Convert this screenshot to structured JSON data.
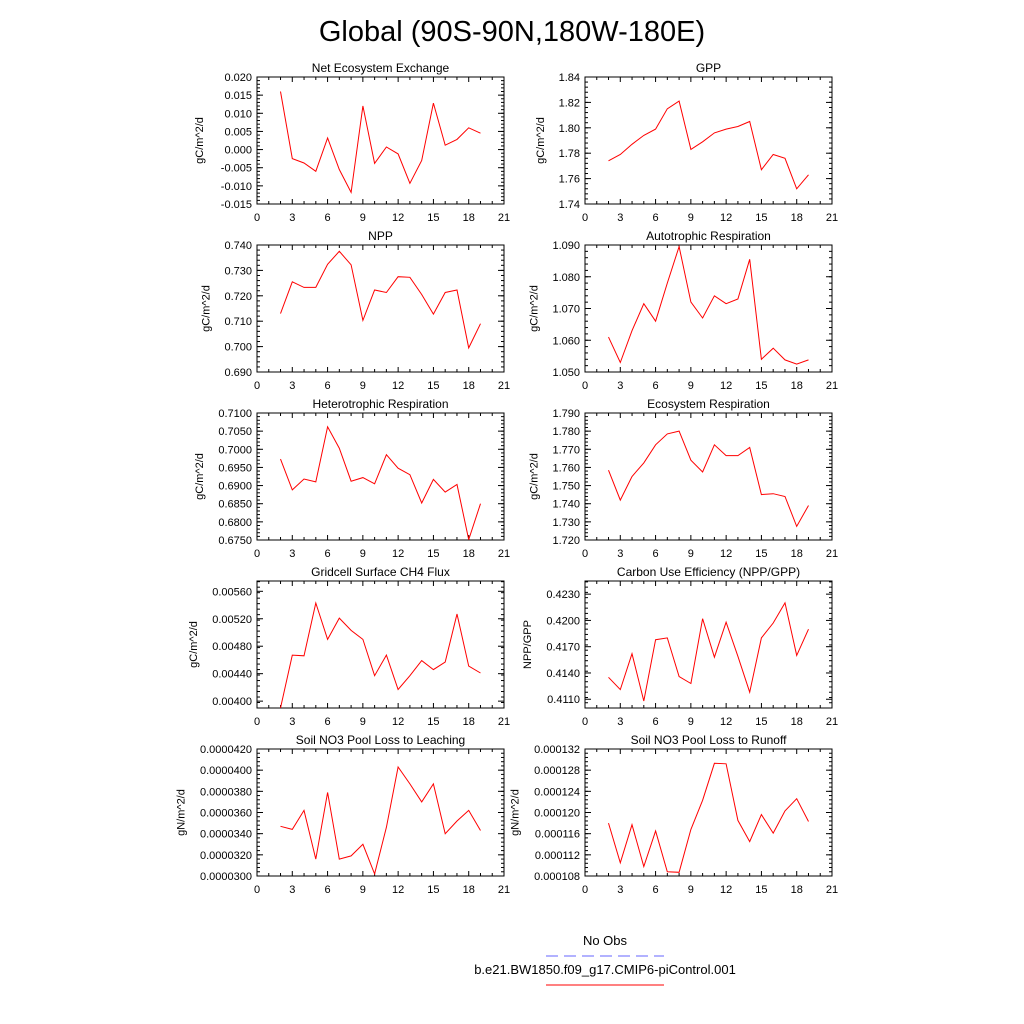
{
  "title": "Global (90S-90N,180W-180E)",
  "colors": {
    "series": "#ff0000",
    "no_obs": "#6666ff",
    "axis": "#000000"
  },
  "legend": {
    "no_obs_label": "No Obs",
    "model_label": "b.e21.BW1850.f09_g17.CMIP6-piControl.001"
  },
  "chart_data": [
    {
      "type": "line",
      "title": "Net Ecosystem Exchange",
      "ylabel": "gC/m^2/d",
      "xlabel": "",
      "xlim": [
        0,
        21
      ],
      "xticks": [
        0,
        3,
        6,
        9,
        12,
        15,
        18,
        21
      ],
      "ylim": [
        -0.015,
        0.02
      ],
      "yticks": [
        -0.015,
        -0.01,
        -0.005,
        0.0,
        0.005,
        0.01,
        0.015,
        0.02
      ],
      "ytick_labels": [
        "-0.015",
        "-0.010",
        "-0.005",
        "0.000",
        "0.005",
        "0.010",
        "0.015",
        "0.020"
      ],
      "x": [
        2,
        3,
        4,
        5,
        6,
        7,
        8,
        9,
        10,
        11,
        12,
        13,
        14,
        15,
        16,
        17,
        18,
        19
      ],
      "values": [
        0.016,
        -0.0025,
        -0.0037,
        -0.006,
        0.0032,
        -0.0055,
        -0.0118,
        0.012,
        -0.0038,
        0.0007,
        -0.0012,
        -0.0093,
        -0.003,
        0.0128,
        0.0012,
        0.0028,
        0.006,
        0.0045
      ]
    },
    {
      "type": "line",
      "title": "GPP",
      "ylabel": "gC/m^2/d",
      "xlabel": "",
      "xlim": [
        0,
        21
      ],
      "xticks": [
        0,
        3,
        6,
        9,
        12,
        15,
        18,
        21
      ],
      "ylim": [
        1.74,
        1.84
      ],
      "yticks": [
        1.74,
        1.76,
        1.78,
        1.8,
        1.82,
        1.84
      ],
      "ytick_labels": [
        "1.74",
        "1.76",
        "1.78",
        "1.80",
        "1.82",
        "1.84"
      ],
      "x": [
        2,
        3,
        4,
        5,
        6,
        7,
        8,
        9,
        10,
        11,
        12,
        13,
        14,
        15,
        16,
        17,
        18,
        19
      ],
      "values": [
        1.774,
        1.779,
        1.787,
        1.794,
        1.799,
        1.815,
        1.821,
        1.783,
        1.789,
        1.796,
        1.799,
        1.801,
        1.805,
        1.767,
        1.779,
        1.776,
        1.752,
        1.763
      ]
    },
    {
      "type": "line",
      "title": "NPP",
      "ylabel": "gC/m^2/d",
      "xlabel": "",
      "xlim": [
        0,
        21
      ],
      "xticks": [
        0,
        3,
        6,
        9,
        12,
        15,
        18,
        21
      ],
      "ylim": [
        0.69,
        0.74
      ],
      "yticks": [
        0.69,
        0.7,
        0.71,
        0.72,
        0.73,
        0.74
      ],
      "ytick_labels": [
        "0.690",
        "0.700",
        "0.710",
        "0.720",
        "0.730",
        "0.740"
      ],
      "x": [
        2,
        3,
        4,
        5,
        6,
        7,
        8,
        9,
        10,
        11,
        12,
        13,
        14,
        15,
        16,
        17,
        18,
        19
      ],
      "values": [
        0.713,
        0.7255,
        0.7233,
        0.7233,
        0.7324,
        0.7375,
        0.7322,
        0.7103,
        0.7223,
        0.7213,
        0.7275,
        0.7273,
        0.7205,
        0.7128,
        0.7213,
        0.7223,
        0.6995,
        0.709
      ]
    },
    {
      "type": "line",
      "title": "Autotrophic Respiration",
      "ylabel": "gC/m^2/d",
      "xlabel": "",
      "xlim": [
        0,
        21
      ],
      "xticks": [
        0,
        3,
        6,
        9,
        12,
        15,
        18,
        21
      ],
      "ylim": [
        1.05,
        1.09
      ],
      "yticks": [
        1.05,
        1.06,
        1.07,
        1.08,
        1.09
      ],
      "ytick_labels": [
        "1.050",
        "1.060",
        "1.070",
        "1.080",
        "1.090"
      ],
      "x": [
        2,
        3,
        4,
        5,
        6,
        7,
        8,
        9,
        10,
        11,
        12,
        13,
        14,
        15,
        16,
        17,
        18,
        19
      ],
      "values": [
        1.061,
        1.053,
        1.063,
        1.0715,
        1.066,
        1.078,
        1.0895,
        1.072,
        1.067,
        1.074,
        1.0715,
        1.073,
        1.0855,
        1.054,
        1.0575,
        1.0538,
        1.0525,
        1.0538
      ]
    },
    {
      "type": "line",
      "title": "Heterotrophic Respiration",
      "ylabel": "gC/m^2/d",
      "xlabel": "",
      "xlim": [
        0,
        21
      ],
      "xticks": [
        0,
        3,
        6,
        9,
        12,
        15,
        18,
        21
      ],
      "ylim": [
        0.675,
        0.71
      ],
      "yticks": [
        0.675,
        0.68,
        0.685,
        0.69,
        0.695,
        0.7,
        0.705,
        0.71
      ],
      "ytick_labels": [
        "0.6750",
        "0.6800",
        "0.6850",
        "0.6900",
        "0.6950",
        "0.7000",
        "0.7050",
        "0.7100"
      ],
      "x": [
        2,
        3,
        4,
        5,
        6,
        7,
        8,
        9,
        10,
        11,
        12,
        13,
        14,
        15,
        16,
        17,
        18,
        19
      ],
      "values": [
        0.6973,
        0.6888,
        0.6918,
        0.691,
        0.7062,
        0.7003,
        0.6912,
        0.6922,
        0.6905,
        0.6985,
        0.6948,
        0.693,
        0.6852,
        0.6917,
        0.6882,
        0.6903,
        0.6751,
        0.685
      ]
    },
    {
      "type": "line",
      "title": "Ecosystem Respiration",
      "ylabel": "gC/m^2/d",
      "xlabel": "",
      "xlim": [
        0,
        21
      ],
      "xticks": [
        0,
        3,
        6,
        9,
        12,
        15,
        18,
        21
      ],
      "ylim": [
        1.72,
        1.79
      ],
      "yticks": [
        1.72,
        1.73,
        1.74,
        1.75,
        1.76,
        1.77,
        1.78,
        1.79
      ],
      "ytick_labels": [
        "1.720",
        "1.730",
        "1.740",
        "1.750",
        "1.760",
        "1.770",
        "1.780",
        "1.790"
      ],
      "x": [
        2,
        3,
        4,
        5,
        6,
        7,
        8,
        9,
        10,
        11,
        12,
        13,
        14,
        15,
        16,
        17,
        18,
        19
      ],
      "values": [
        1.7585,
        1.742,
        1.755,
        1.7625,
        1.7725,
        1.7785,
        1.78,
        1.764,
        1.7575,
        1.7725,
        1.7665,
        1.7665,
        1.771,
        1.745,
        1.7455,
        1.744,
        1.7275,
        1.739
      ]
    },
    {
      "type": "line",
      "title": "Gridcell Surface CH4 Flux",
      "ylabel": "gC/m^2/d",
      "xlabel": "",
      "xlim": [
        0,
        21
      ],
      "xticks": [
        0,
        3,
        6,
        9,
        12,
        15,
        18,
        21
      ],
      "ylim": [
        0.0039,
        0.00575
      ],
      "yticks": [
        0.004,
        0.0044,
        0.0048,
        0.0052,
        0.0056
      ],
      "ytick_labels": [
        "0.00400",
        "0.00440",
        "0.00480",
        "0.00520",
        "0.00560"
      ],
      "x": [
        2,
        3,
        4,
        5,
        6,
        7,
        8,
        9,
        10,
        11,
        12,
        13,
        14,
        15,
        16,
        17,
        18,
        19
      ],
      "values": [
        0.0039,
        0.00467,
        0.00466,
        0.00543,
        0.0049,
        0.00521,
        0.00503,
        0.0049,
        0.00437,
        0.00467,
        0.00417,
        0.00437,
        0.00459,
        0.00446,
        0.00457,
        0.00527,
        0.00451,
        0.00441
      ]
    },
    {
      "type": "line",
      "title": "Carbon Use Efficiency (NPP/GPP)",
      "ylabel": "NPP/GPP",
      "xlabel": "",
      "xlim": [
        0,
        21
      ],
      "xticks": [
        0,
        3,
        6,
        9,
        12,
        15,
        18,
        21
      ],
      "ylim": [
        0.41,
        0.4245
      ],
      "yticks": [
        0.411,
        0.414,
        0.417,
        0.42,
        0.423
      ],
      "ytick_labels": [
        "0.4110",
        "0.4140",
        "0.4170",
        "0.4200",
        "0.4230"
      ],
      "x": [
        2,
        3,
        4,
        5,
        6,
        7,
        8,
        9,
        10,
        11,
        12,
        13,
        14,
        15,
        16,
        17,
        18,
        19
      ],
      "values": [
        0.4135,
        0.4121,
        0.4162,
        0.4108,
        0.4178,
        0.418,
        0.4136,
        0.4128,
        0.4202,
        0.4158,
        0.4198,
        0.4159,
        0.4118,
        0.418,
        0.4197,
        0.422,
        0.416,
        0.419
      ]
    },
    {
      "type": "line",
      "title": "Soil NO3 Pool Loss to Leaching",
      "ylabel": "gN/m^2/d",
      "xlabel": "",
      "xlim": [
        0,
        21
      ],
      "xticks": [
        0,
        3,
        6,
        9,
        12,
        15,
        18,
        21
      ],
      "ylim": [
        3e-05,
        4.2e-05
      ],
      "yticks": [
        3e-05,
        3.2e-05,
        3.4e-05,
        3.6e-05,
        3.8e-05,
        4e-05,
        4.2e-05
      ],
      "ytick_labels": [
        "0.0000300",
        "0.0000320",
        "0.0000340",
        "0.0000360",
        "0.0000380",
        "0.0000400",
        "0.0000420"
      ],
      "x": [
        2,
        3,
        4,
        5,
        6,
        7,
        8,
        9,
        10,
        11,
        12,
        13,
        14,
        15,
        16,
        17,
        18,
        19
      ],
      "values": [
        3.47e-05,
        3.44e-05,
        3.62e-05,
        3.16e-05,
        3.79e-05,
        3.16e-05,
        3.19e-05,
        3.3e-05,
        3.02e-05,
        3.46e-05,
        4.03e-05,
        3.87e-05,
        3.7e-05,
        3.87e-05,
        3.4e-05,
        3.52e-05,
        3.62e-05,
        3.43e-05
      ]
    },
    {
      "type": "line",
      "title": "Soil NO3 Pool Loss to Runoff",
      "ylabel": "gN/m^2/d",
      "xlabel": "",
      "xlim": [
        0,
        21
      ],
      "xticks": [
        0,
        3,
        6,
        9,
        12,
        15,
        18,
        21
      ],
      "ylim": [
        0.000108,
        0.000132
      ],
      "yticks": [
        0.000108,
        0.000112,
        0.000116,
        0.00012,
        0.000124,
        0.000128,
        0.000132
      ],
      "ytick_labels": [
        "0.000108",
        "0.000112",
        "0.000116",
        "0.000120",
        "0.000124",
        "0.000128",
        "0.000132"
      ],
      "x": [
        2,
        3,
        4,
        5,
        6,
        7,
        8,
        9,
        10,
        11,
        12,
        13,
        14,
        15,
        16,
        17,
        18,
        19
      ],
      "values": [
        0.000118,
        0.0001105,
        0.0001177,
        0.0001098,
        0.0001165,
        0.0001088,
        0.0001087,
        0.0001168,
        0.0001223,
        0.0001293,
        0.0001292,
        0.0001185,
        0.0001145,
        0.0001196,
        0.0001161,
        0.0001203,
        0.0001226,
        0.0001183
      ]
    }
  ]
}
